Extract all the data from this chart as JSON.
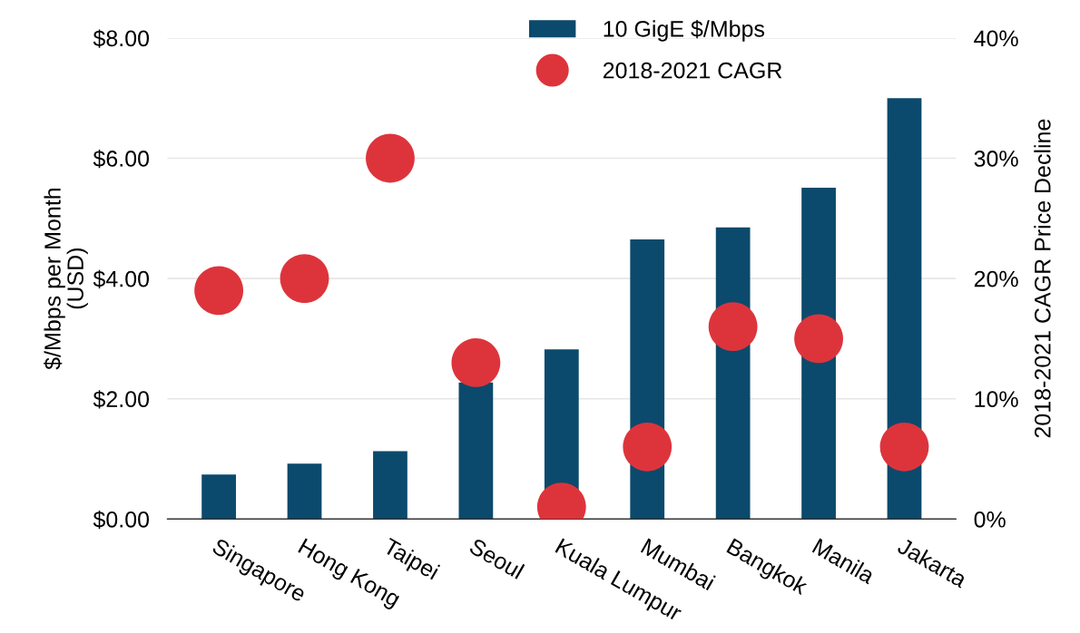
{
  "chart_data": {
    "type": "bar",
    "ylabel": "$/Mbps per Month\n(USD)",
    "y2label": "2018-2021 CAGR Price Decline",
    "categories": [
      "Singapore",
      "Hong Kong",
      "Taipei",
      "Seoul",
      "Kuala Lumpur",
      "Mumbai",
      "Bangkok",
      "Manila",
      "Jakarta"
    ],
    "series": [
      {
        "name": "10 GigE $/Mbps",
        "color": "#0b4a6c",
        "values": [
          0.74,
          0.92,
          1.13,
          2.27,
          2.82,
          4.65,
          4.85,
          5.51,
          7.0
        ]
      },
      {
        "name": "2018-2021 CAGR",
        "type": "scatter",
        "axis": "y2",
        "color": "#dd343c",
        "marker": "circle",
        "values": [
          19,
          20,
          30,
          13,
          1,
          6,
          16,
          15,
          6
        ]
      }
    ],
    "ylim": [
      0,
      8
    ],
    "yticks": [
      {
        "value": 0,
        "label": "$0.00"
      },
      {
        "value": 2,
        "label": "$2.00"
      },
      {
        "value": 4,
        "label": "$4.00"
      },
      {
        "value": 6,
        "label": "$6.00"
      },
      {
        "value": 8,
        "label": "$8.00"
      }
    ],
    "y2lim": [
      0,
      40
    ],
    "y2ticks": [
      {
        "value": 0,
        "label": "0%"
      },
      {
        "value": 10,
        "label": "10%"
      },
      {
        "value": 20,
        "label": "20%"
      },
      {
        "value": 30,
        "label": "30%"
      },
      {
        "value": 40,
        "label": "40%"
      }
    ],
    "grid": "y",
    "legend": "top"
  }
}
